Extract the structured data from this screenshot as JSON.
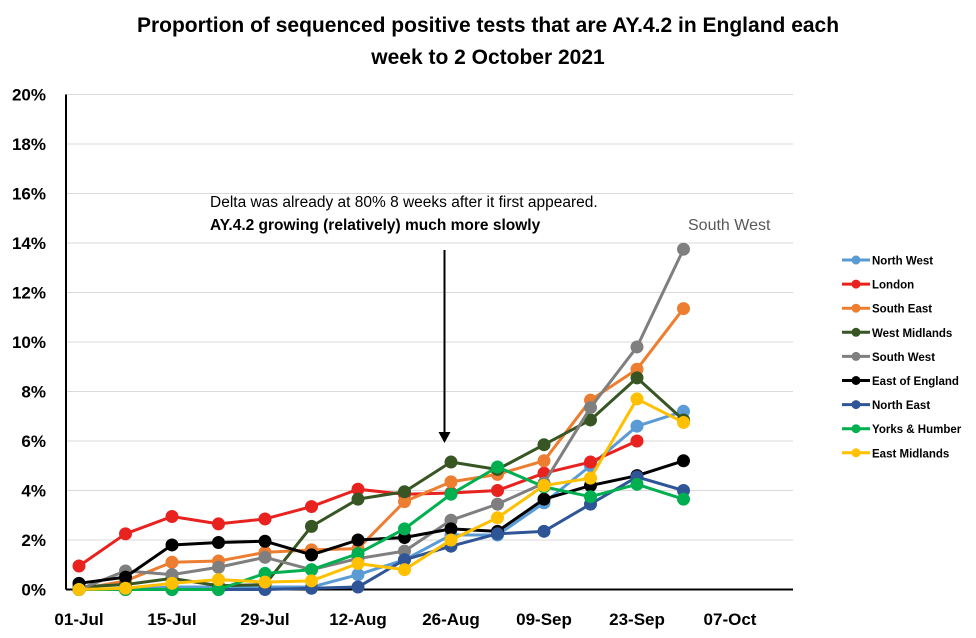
{
  "chart_data": {
    "type": "line",
    "title_lines": [
      "Proportion of sequenced positive tests that are AY.4.2 in England each",
      "week to 2 October 2021"
    ],
    "y_ticks": [
      "0%",
      "2%",
      "4%",
      "6%",
      "8%",
      "10%",
      "12%",
      "14%",
      "16%",
      "18%",
      "20%"
    ],
    "ylim": [
      0,
      20
    ],
    "x_ticks": [
      "01-Jul",
      "15-Jul",
      "29-Jul",
      "12-Aug",
      "26-Aug",
      "09-Sep",
      "23-Sep",
      "07-Oct"
    ],
    "xlim_days": [
      0,
      101
    ],
    "x_tick_days": [
      0,
      14,
      28,
      42,
      56,
      70,
      84,
      98
    ],
    "x_days": [
      0,
      7,
      14,
      21,
      28,
      35,
      42,
      49,
      56,
      63,
      70,
      77,
      84,
      91
    ],
    "legend_position": "right",
    "series": [
      {
        "name": "North West",
        "color": "#5B9BD5",
        "values": [
          0.0,
          0.0,
          0.1,
          0.1,
          0.1,
          0.1,
          0.6,
          1.2,
          2.2,
          2.2,
          3.5,
          5.0,
          6.6,
          7.2
        ]
      },
      {
        "name": "London",
        "color": "#E8221F",
        "values": [
          0.95,
          2.25,
          2.95,
          2.65,
          2.85,
          3.35,
          4.05,
          3.85,
          3.9,
          4.0,
          4.7,
          5.15,
          6.0,
          null
        ]
      },
      {
        "name": "South East",
        "color": "#ED7D31",
        "values": [
          0.0,
          0.35,
          1.1,
          1.15,
          1.5,
          1.6,
          1.65,
          3.55,
          4.35,
          4.65,
          5.2,
          7.65,
          8.9,
          11.35
        ]
      },
      {
        "name": "West Midlands",
        "color": "#375623",
        "values": [
          0.1,
          0.2,
          0.45,
          0.15,
          0.2,
          2.55,
          3.65,
          3.95,
          5.15,
          4.85,
          5.85,
          6.85,
          8.55,
          6.85
        ]
      },
      {
        "name": "South West",
        "color": "#7F7F7F",
        "values": [
          0.0,
          0.75,
          0.6,
          0.9,
          1.3,
          0.8,
          1.25,
          1.55,
          2.8,
          3.45,
          4.3,
          7.35,
          9.8,
          13.75
        ]
      },
      {
        "name": "East of England",
        "color": "#000000",
        "values": [
          0.25,
          0.5,
          1.8,
          1.9,
          1.95,
          1.4,
          2.0,
          2.1,
          2.45,
          2.35,
          3.65,
          4.2,
          4.6,
          5.2
        ]
      },
      {
        "name": "North East",
        "color": "#2F5597",
        "values": [
          0.0,
          0.0,
          0.0,
          0.0,
          0.0,
          0.05,
          0.1,
          1.2,
          1.75,
          2.25,
          2.35,
          3.45,
          4.55,
          4.0
        ]
      },
      {
        "name": "Yorks & Humber",
        "color": "#00B050",
        "values": [
          0.0,
          0.0,
          0.0,
          0.0,
          0.65,
          0.8,
          1.45,
          2.45,
          3.85,
          4.95,
          4.15,
          3.75,
          4.25,
          3.65
        ]
      },
      {
        "name": "East Midlands",
        "color": "#FFC000",
        "values": [
          0.0,
          0.05,
          0.25,
          0.4,
          0.3,
          0.35,
          1.05,
          0.8,
          2.0,
          2.9,
          4.2,
          4.5,
          7.7,
          6.75
        ]
      }
    ],
    "annotations": {
      "note_line1": "Delta was already at 80% 8 weeks after it first appeared.",
      "note_line2": "AY.4.2 growing (relatively) much more slowly",
      "series_label": "South West"
    }
  }
}
